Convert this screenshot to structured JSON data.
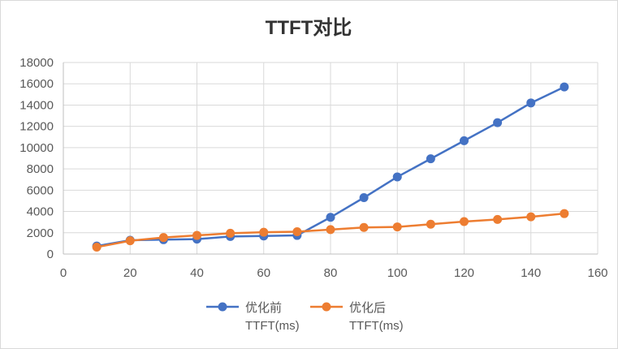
{
  "chart_data": {
    "type": "line",
    "title": "TTFT对比",
    "xlabel": "",
    "ylabel": "",
    "xlim": [
      0,
      160
    ],
    "ylim": [
      0,
      18000
    ],
    "x_ticks": [
      0,
      20,
      40,
      60,
      80,
      100,
      120,
      140,
      160
    ],
    "y_ticks": [
      0,
      2000,
      4000,
      6000,
      8000,
      10000,
      12000,
      14000,
      16000,
      18000
    ],
    "grid": true,
    "legend_position": "bottom",
    "x": [
      10,
      20,
      30,
      40,
      50,
      60,
      70,
      80,
      90,
      100,
      110,
      120,
      130,
      140,
      150
    ],
    "series": [
      {
        "name": "优化前 TTFT(ms)",
        "name_lines": [
          "优化前",
          "TTFT(ms)"
        ],
        "color": "#4472c4",
        "values": [
          750,
          1300,
          1350,
          1400,
          1650,
          1700,
          1750,
          3450,
          5300,
          7250,
          8950,
          10650,
          12350,
          14200,
          15700
        ]
      },
      {
        "name": "优化后 TTFT(ms)",
        "name_lines": [
          "优化后",
          "TTFT(ms)"
        ],
        "color": "#ed7d31",
        "values": [
          650,
          1250,
          1550,
          1750,
          1950,
          2050,
          2100,
          2300,
          2500,
          2550,
          2800,
          3050,
          3250,
          3500,
          3800
        ]
      }
    ]
  }
}
